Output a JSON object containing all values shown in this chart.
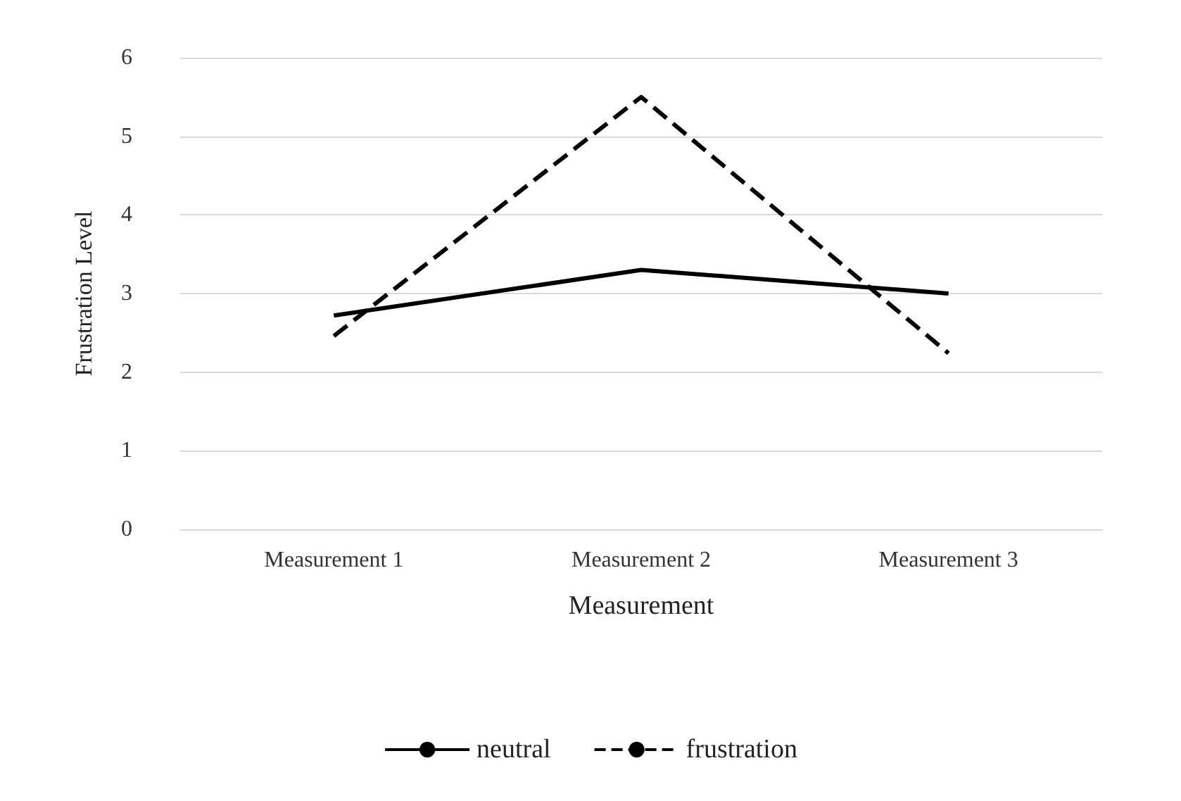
{
  "chart_data": {
    "type": "line",
    "xlabel": "Measurement",
    "ylabel": "Frustration Level",
    "categories": [
      "Measurement 1",
      "Measurement 2",
      "Measurement 3"
    ],
    "series": [
      {
        "name": "neutral",
        "color": "#000000",
        "values": [
          2.72,
          3.3,
          3.0
        ],
        "line_style": "solid"
      },
      {
        "name": "frustration",
        "color": "#000000",
        "values": [
          2.46,
          5.5,
          2.24
        ],
        "line_style": "dashed"
      }
    ],
    "ylim": [
      0,
      6
    ],
    "yticks": [
      0,
      1,
      2,
      3,
      4,
      5,
      6
    ],
    "grid": "y",
    "legend": "bottom",
    "marker": "none"
  }
}
